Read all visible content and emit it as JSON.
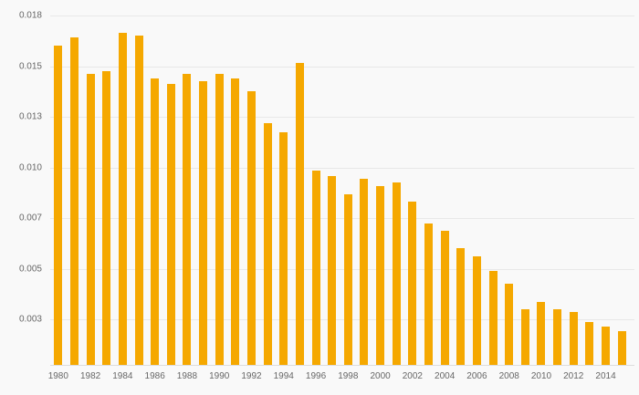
{
  "colors": {
    "background": "#f9f9f9",
    "bar": "#F5A800",
    "gridline": "#e8e8e8",
    "baseline": "#dddddd",
    "axis_text": "#666666"
  },
  "chart_data": {
    "type": "bar",
    "title": "",
    "xlabel": "",
    "ylabel": "",
    "grid": true,
    "legend": "none",
    "x": [
      1980,
      1981,
      1982,
      1983,
      1984,
      1985,
      1986,
      1987,
      1988,
      1989,
      1990,
      1991,
      1992,
      1993,
      1994,
      1995,
      1996,
      1997,
      1998,
      1999,
      2000,
      2001,
      2002,
      2003,
      2004,
      2005,
      2006,
      2007,
      2008,
      2009,
      2010,
      2011,
      2012,
      2013,
      2014,
      2015
    ],
    "values": [
      0.0162,
      0.0167,
      0.0147,
      0.0148,
      0.017,
      0.0168,
      0.0145,
      0.0143,
      0.0147,
      0.0144,
      0.0147,
      0.0145,
      0.014,
      0.0126,
      0.0121,
      0.0152,
      0.0098,
      0.0095,
      0.0084,
      0.0093,
      0.0089,
      0.0091,
      0.008,
      0.0068,
      0.0065,
      0.0058,
      0.0055,
      0.0049,
      0.0044,
      0.0034,
      0.0037,
      0.0034,
      0.0033,
      0.0028,
      0.0025,
      0.0022
    ],
    "yticks": [
      0.018,
      0.015,
      0.013,
      0.01,
      0.007,
      0.005,
      0.003
    ],
    "ytick_labels": [
      "0.018",
      "0.015",
      "0.013",
      "0.010",
      "0.007",
      "0.005",
      "0.003"
    ],
    "xtick_labels": [
      "1980",
      "1982",
      "1984",
      "1986",
      "1988",
      "1990",
      "1992",
      "1994",
      "1996",
      "1998",
      "2000",
      "2002",
      "2004",
      "2006",
      "2008",
      "2010",
      "2012",
      "2014"
    ],
    "ylim": [
      0,
      0.018
    ]
  }
}
